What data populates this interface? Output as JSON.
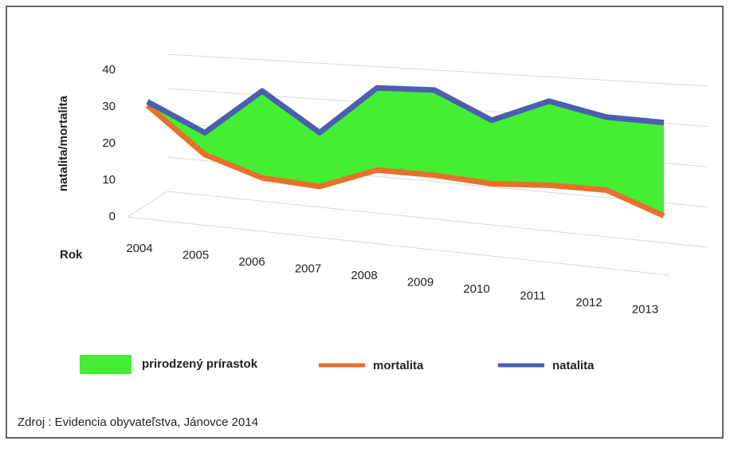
{
  "chart_data": {
    "type": "area3d",
    "y_label": "natalita/mortalita",
    "x_label": "Rok",
    "categories": [
      "2004",
      "2005",
      "2006",
      "2007",
      "2008",
      "2009",
      "2010",
      "2011",
      "2012",
      "2013"
    ],
    "fill_name": "prirodzený prírastok",
    "fill_color": "#44ee33",
    "series": [
      {
        "name": "mortalita",
        "color": "#e8702a",
        "values": [
          30,
          17,
          11,
          9,
          14,
          13,
          11,
          11,
          10,
          3
        ]
      },
      {
        "name": "natalita",
        "color": "#4a5fb0",
        "values": [
          31,
          23,
          35,
          24,
          37,
          37,
          29,
          35,
          31,
          30
        ]
      }
    ],
    "ylim": [
      0,
      40
    ],
    "yticks": [
      0,
      10,
      20,
      30,
      40
    ],
    "grid": true,
    "source": "Zdroj : Evidencia obyvateľstva, Jánovce 2014"
  }
}
